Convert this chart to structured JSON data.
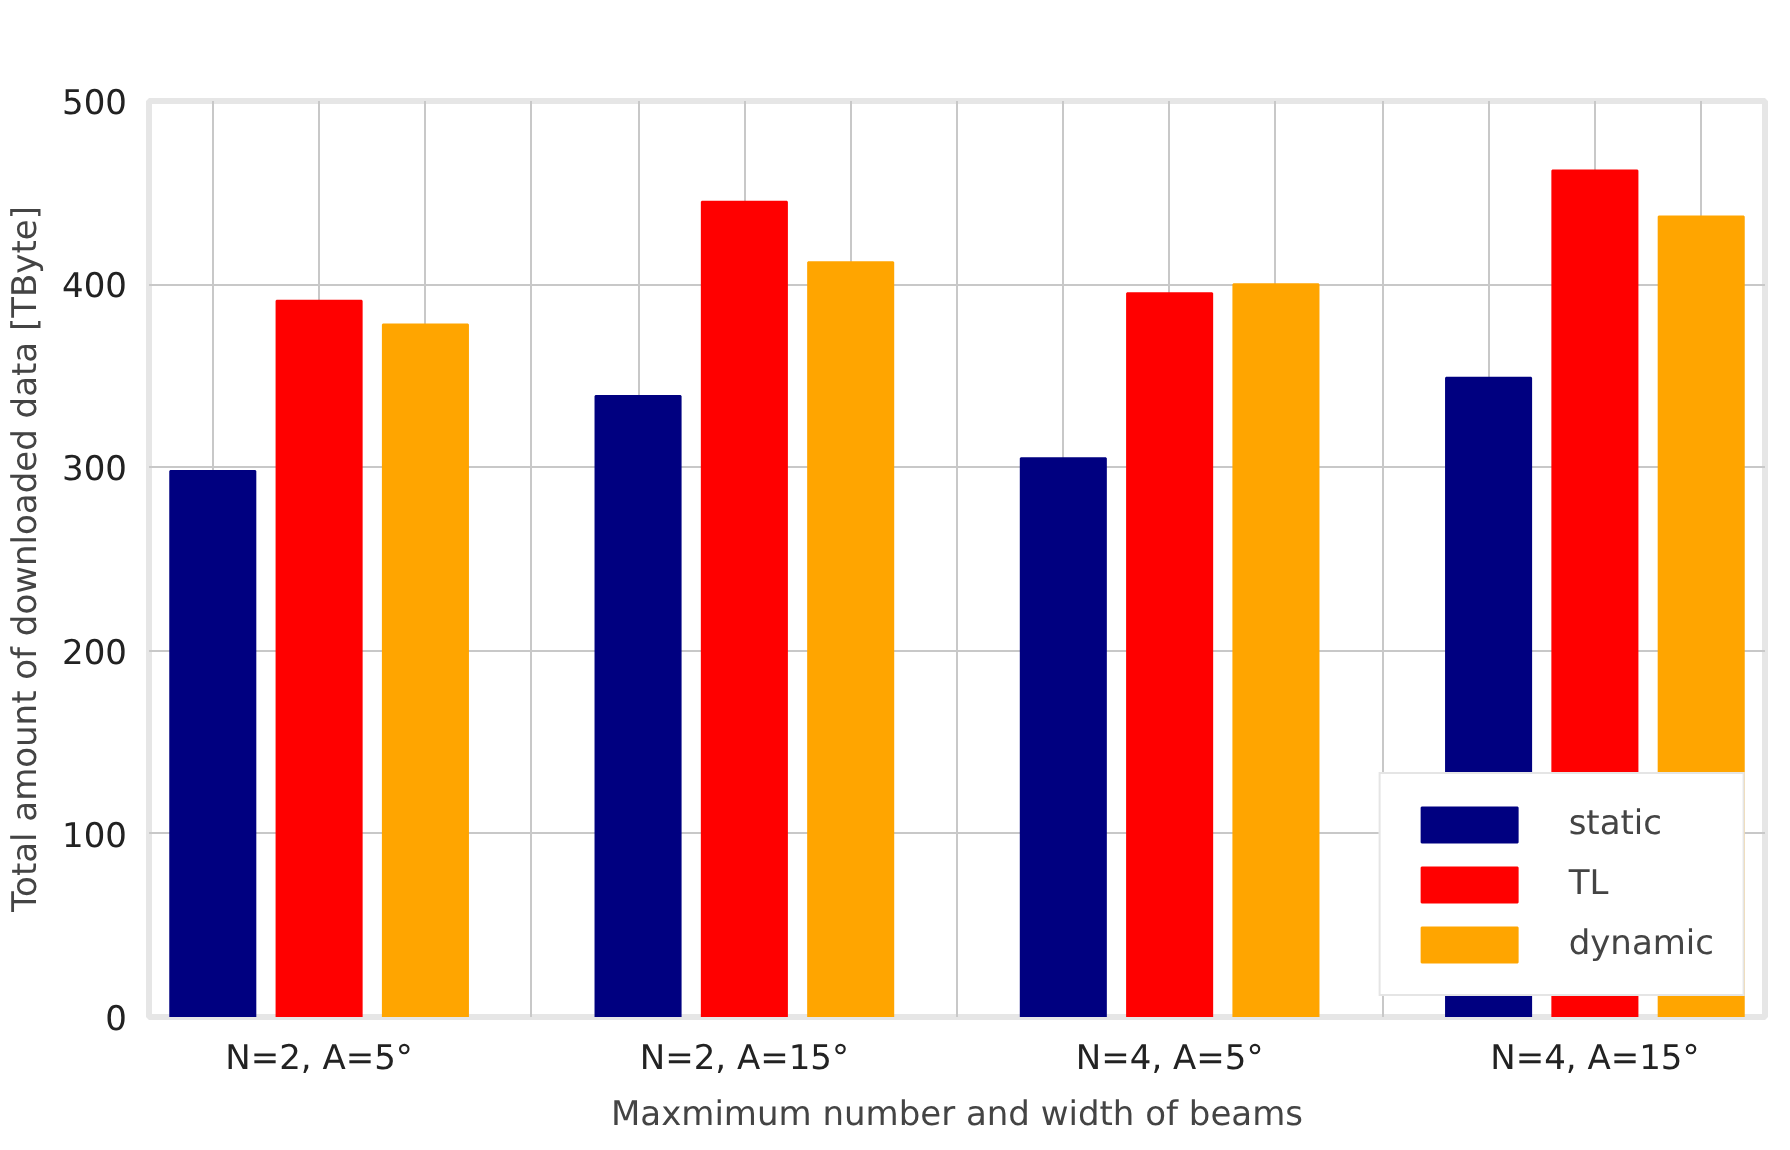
{
  "chart_data": {
    "type": "bar",
    "xlabel": "Maxmimum number and width of beams",
    "ylabel": "Total amount of downloaded data [TByte]",
    "categories": [
      "N=2, A=5°",
      "N=2, A=15°",
      "N=4, A=5°",
      "N=4, A=15°"
    ],
    "series": [
      {
        "name": "static",
        "color": "#000080",
        "values": [
          298,
          339,
          305,
          349
        ]
      },
      {
        "name": "TL",
        "color": "#ff0000",
        "values": [
          391,
          445,
          395,
          462
        ]
      },
      {
        "name": "dynamic",
        "color": "#ffa500",
        "values": [
          378,
          412,
          400,
          437
        ]
      }
    ],
    "ylim": [
      0,
      500
    ],
    "yticks": [
      0,
      100,
      200,
      300,
      400,
      500
    ],
    "grid": true,
    "legend": "bottom right"
  }
}
